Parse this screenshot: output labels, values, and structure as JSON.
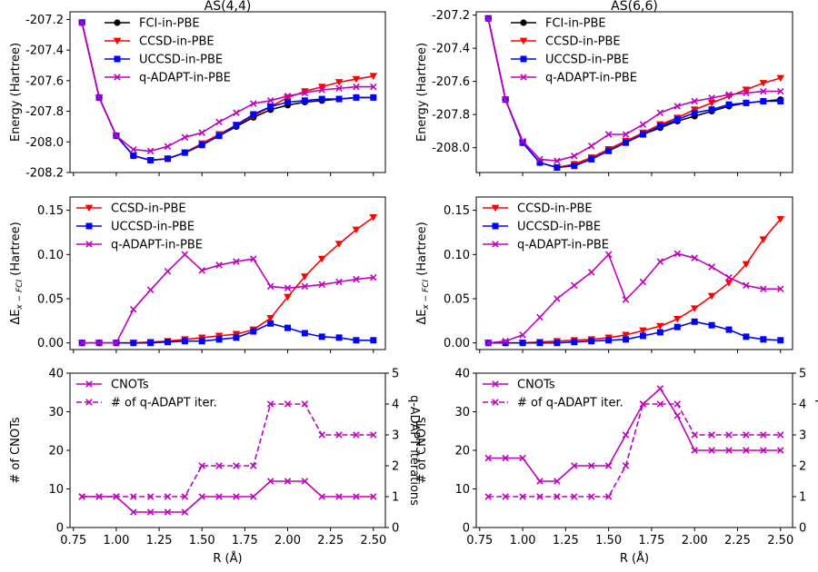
{
  "figure": {
    "shared_xlabel": "R (Å)",
    "x_ticks": [
      0.75,
      1.0,
      1.25,
      1.5,
      1.75,
      2.0,
      2.25,
      2.5
    ],
    "x_tick_labels": [
      "0.75",
      "1.00",
      "1.25",
      "1.50",
      "1.75",
      "2.00",
      "2.25",
      "2.50"
    ],
    "xlim": [
      0.73,
      2.57
    ]
  },
  "colors": {
    "fci": "#000000",
    "ccsd": "#ff0000",
    "uccsd": "#0000ff",
    "qadapt": "#bf00bf"
  },
  "chart_data": [
    {
      "type": "line",
      "column": "left",
      "row": "energy",
      "title": "AS(4,4)",
      "ylabel": "Energy (Hartree)",
      "ylim": [
        -208.2,
        -207.15
      ],
      "y_ticks": [
        -207.2,
        -207.4,
        -207.6,
        -207.8,
        -208.0,
        -208.2
      ],
      "y_tick_labels": [
        "-207.2",
        "-207.4",
        "-207.6",
        "-207.8",
        "-208.0",
        "-208.2"
      ],
      "legend_position": "top-center",
      "x": [
        0.8,
        0.9,
        1.0,
        1.1,
        1.2,
        1.3,
        1.4,
        1.5,
        1.6,
        1.7,
        1.8,
        1.9,
        2.0,
        2.1,
        2.2,
        2.3,
        2.4,
        2.5
      ],
      "series": [
        {
          "name": "FCI-in-PBE",
          "color_key": "fci",
          "marker": "circle",
          "values": [
            -207.22,
            -207.71,
            -207.96,
            -208.09,
            -208.12,
            -208.11,
            -208.07,
            -208.02,
            -207.96,
            -207.9,
            -207.84,
            -207.79,
            -207.76,
            -207.74,
            -207.73,
            -207.72,
            -207.71,
            -207.71
          ]
        },
        {
          "name": "CCSD-in-PBE",
          "color_key": "ccsd",
          "marker": "triangle-down",
          "values": [
            -207.22,
            -207.71,
            -207.96,
            -208.09,
            -208.12,
            -208.11,
            -208.07,
            -208.01,
            -207.95,
            -207.89,
            -207.83,
            -207.77,
            -207.71,
            -207.67,
            -207.64,
            -207.61,
            -207.59,
            -207.57
          ]
        },
        {
          "name": "UCCSD-in-PBE",
          "color_key": "uccsd",
          "marker": "square",
          "values": [
            -207.22,
            -207.71,
            -207.96,
            -208.09,
            -208.12,
            -208.11,
            -208.07,
            -208.02,
            -207.96,
            -207.89,
            -207.82,
            -207.77,
            -207.74,
            -207.73,
            -207.72,
            -207.72,
            -207.71,
            -207.71
          ]
        },
        {
          "name": "q-ADAPT-in-PBE",
          "color_key": "qadapt",
          "marker": "x",
          "values": [
            -207.22,
            -207.71,
            -207.96,
            -208.05,
            -208.06,
            -208.03,
            -207.97,
            -207.94,
            -207.87,
            -207.81,
            -207.75,
            -207.73,
            -207.7,
            -207.68,
            -207.66,
            -207.65,
            -207.64,
            -207.64
          ]
        }
      ]
    },
    {
      "type": "line",
      "column": "right",
      "row": "energy",
      "title": "AS(6,6)",
      "ylabel": "Energy (Hartree)",
      "ylim": [
        -208.15,
        -207.18
      ],
      "y_ticks": [
        -207.2,
        -207.4,
        -207.6,
        -207.8,
        -208.0
      ],
      "y_tick_labels": [
        "-207.2",
        "-207.4",
        "-207.6",
        "-207.8",
        "-208.0"
      ],
      "legend_position": "top-center",
      "x": [
        0.8,
        0.9,
        1.0,
        1.1,
        1.2,
        1.3,
        1.4,
        1.5,
        1.6,
        1.7,
        1.8,
        1.9,
        2.0,
        2.1,
        2.2,
        2.3,
        2.4,
        2.5
      ],
      "series": [
        {
          "name": "FCI-in-PBE",
          "color_key": "fci",
          "marker": "circle",
          "values": [
            -207.22,
            -207.71,
            -207.97,
            -208.09,
            -208.12,
            -208.1,
            -208.06,
            -208.01,
            -207.96,
            -207.92,
            -207.88,
            -207.84,
            -207.81,
            -207.78,
            -207.75,
            -207.73,
            -207.72,
            -207.71
          ]
        },
        {
          "name": "CCSD-in-PBE",
          "color_key": "ccsd",
          "marker": "triangle-down",
          "values": [
            -207.22,
            -207.71,
            -207.97,
            -208.09,
            -208.12,
            -208.1,
            -208.06,
            -208.01,
            -207.96,
            -207.91,
            -207.86,
            -207.82,
            -207.77,
            -207.73,
            -207.69,
            -207.65,
            -207.61,
            -207.58
          ]
        },
        {
          "name": "UCCSD-in-PBE",
          "color_key": "uccsd",
          "marker": "square",
          "values": [
            -207.22,
            -207.71,
            -207.97,
            -208.09,
            -208.12,
            -208.11,
            -208.07,
            -208.02,
            -207.97,
            -207.92,
            -207.87,
            -207.83,
            -207.79,
            -207.77,
            -207.74,
            -207.73,
            -207.72,
            -207.72
          ]
        },
        {
          "name": "q-ADAPT-in-PBE",
          "color_key": "qadapt",
          "marker": "x",
          "values": [
            -207.22,
            -207.71,
            -207.96,
            -208.07,
            -208.08,
            -208.05,
            -207.99,
            -207.92,
            -207.92,
            -207.86,
            -207.79,
            -207.75,
            -207.72,
            -207.7,
            -207.68,
            -207.67,
            -207.66,
            -207.66
          ]
        }
      ]
    },
    {
      "type": "line",
      "column": "left",
      "row": "delta",
      "title": "",
      "ylabel": "ΔE",
      "ylabel_subscript": "x − FCI",
      "ylabel_suffix": " (Hartree)",
      "ylim": [
        -0.0075,
        0.165
      ],
      "y_ticks": [
        0.0,
        0.05,
        0.1,
        0.15
      ],
      "y_tick_labels": [
        "0.00",
        "0.05",
        "0.10",
        "0.15"
      ],
      "legend_position": "top-left",
      "x": [
        0.8,
        0.9,
        1.0,
        1.1,
        1.2,
        1.3,
        1.4,
        1.5,
        1.6,
        1.7,
        1.8,
        1.9,
        2.0,
        2.1,
        2.2,
        2.3,
        2.4,
        2.5
      ],
      "series": [
        {
          "name": "CCSD-in-PBE",
          "color_key": "ccsd",
          "marker": "triangle-down",
          "values": [
            0.0,
            0.0,
            0.0,
            0.0,
            0.001,
            0.002,
            0.004,
            0.006,
            0.008,
            0.01,
            0.015,
            0.028,
            0.052,
            0.075,
            0.095,
            0.112,
            0.128,
            0.142
          ]
        },
        {
          "name": "UCCSD-in-PBE",
          "color_key": "uccsd",
          "marker": "square",
          "values": [
            0.0,
            0.0,
            0.0,
            0.0,
            0.0,
            0.001,
            0.002,
            0.002,
            0.004,
            0.006,
            0.013,
            0.022,
            0.017,
            0.011,
            0.007,
            0.006,
            0.003,
            0.003
          ]
        },
        {
          "name": "q-ADAPT-in-PBE",
          "color_key": "qadapt",
          "marker": "x",
          "values": [
            0.0,
            0.0,
            0.0,
            0.038,
            0.06,
            0.081,
            0.1,
            0.082,
            0.088,
            0.092,
            0.095,
            0.064,
            0.062,
            0.064,
            0.066,
            0.069,
            0.072,
            0.074
          ]
        }
      ]
    },
    {
      "type": "line",
      "column": "right",
      "row": "delta",
      "title": "",
      "ylabel": "ΔE",
      "ylabel_subscript": "x − FCI",
      "ylabel_suffix": " (Hartree)",
      "ylim": [
        -0.0075,
        0.165
      ],
      "y_ticks": [
        0.0,
        0.05,
        0.1,
        0.15
      ],
      "y_tick_labels": [
        "0.00",
        "0.05",
        "0.10",
        "0.15"
      ],
      "legend_position": "top-left",
      "x": [
        0.8,
        0.9,
        1.0,
        1.1,
        1.2,
        1.3,
        1.4,
        1.5,
        1.6,
        1.7,
        1.8,
        1.9,
        2.0,
        2.1,
        2.2,
        2.3,
        2.4,
        2.5
      ],
      "series": [
        {
          "name": "CCSD-in-PBE",
          "color_key": "ccsd",
          "marker": "triangle-down",
          "values": [
            0.0,
            0.0,
            0.0,
            0.001,
            0.002,
            0.003,
            0.004,
            0.006,
            0.009,
            0.014,
            0.019,
            0.027,
            0.039,
            0.053,
            0.068,
            0.089,
            0.117,
            0.14
          ]
        },
        {
          "name": "UCCSD-in-PBE",
          "color_key": "uccsd",
          "marker": "square",
          "values": [
            0.0,
            0.0,
            0.0,
            0.0,
            0.0,
            0.001,
            0.002,
            0.003,
            0.004,
            0.008,
            0.012,
            0.018,
            0.024,
            0.02,
            0.015,
            0.007,
            0.004,
            0.003
          ]
        },
        {
          "name": "q-ADAPT-in-PBE",
          "color_key": "qadapt",
          "marker": "x",
          "values": [
            0.0,
            0.002,
            0.009,
            0.029,
            0.05,
            0.065,
            0.08,
            0.1,
            0.049,
            0.069,
            0.092,
            0.101,
            0.096,
            0.086,
            0.074,
            0.065,
            0.061,
            0.061
          ]
        }
      ]
    },
    {
      "type": "line",
      "column": "left",
      "row": "cnots",
      "title": "",
      "ylabel": "# of CNOTs",
      "ylim": [
        0,
        40
      ],
      "y_ticks": [
        0,
        10,
        20,
        30,
        40
      ],
      "y_tick_labels": [
        "0",
        "10",
        "20",
        "30",
        "40"
      ],
      "ylabel_right": "q-ADAPT iterations",
      "ylim_right": [
        0,
        5
      ],
      "y_ticks_right": [
        0,
        1,
        2,
        3,
        4,
        5
      ],
      "y_tick_labels_right": [
        "0",
        "1",
        "2",
        "3",
        "4",
        "5"
      ],
      "legend_position": "top-left",
      "x": [
        0.8,
        0.9,
        1.0,
        1.1,
        1.2,
        1.3,
        1.4,
        1.5,
        1.6,
        1.7,
        1.8,
        1.9,
        2.0,
        2.1,
        2.2,
        2.3,
        2.4,
        2.5
      ],
      "series": [
        {
          "name": "CNOTs",
          "axis": "left",
          "style": "solid",
          "color_key": "qadapt",
          "marker": "x",
          "values": [
            8,
            8,
            8,
            4,
            4,
            4,
            4,
            8,
            8,
            8,
            8,
            12,
            12,
            12,
            8,
            8,
            8,
            8
          ]
        },
        {
          "name": "# of q-ADAPT iter.",
          "axis": "right",
          "style": "dashed",
          "color_key": "qadapt",
          "marker": "x",
          "values": [
            1,
            1,
            1,
            1,
            1,
            1,
            1,
            2,
            2,
            2,
            2,
            4,
            4,
            4,
            3,
            3,
            3,
            3
          ]
        }
      ]
    },
    {
      "type": "line",
      "column": "right",
      "row": "cnots",
      "title": "",
      "ylabel": "# of CNOTs",
      "ylim": [
        0,
        40
      ],
      "y_ticks": [
        0,
        10,
        20,
        30,
        40
      ],
      "y_tick_labels": [
        "0",
        "10",
        "20",
        "30",
        "40"
      ],
      "ylabel_right": "q-ADAPT iterations",
      "ylim_right": [
        0,
        5
      ],
      "y_ticks_right": [
        0,
        1,
        2,
        3,
        4,
        5
      ],
      "y_tick_labels_right": [
        "0",
        "1",
        "2",
        "3",
        "4",
        "5"
      ],
      "legend_position": "top-left",
      "x": [
        0.8,
        0.9,
        1.0,
        1.1,
        1.2,
        1.3,
        1.4,
        1.5,
        1.6,
        1.7,
        1.8,
        1.9,
        2.0,
        2.1,
        2.2,
        2.3,
        2.4,
        2.5
      ],
      "series": [
        {
          "name": "CNOTs",
          "axis": "left",
          "style": "solid",
          "color_key": "qadapt",
          "marker": "x",
          "values": [
            18,
            18,
            18,
            12,
            12,
            16,
            16,
            16,
            24,
            32,
            36,
            29,
            20,
            20,
            20,
            20,
            20,
            20
          ]
        },
        {
          "name": "# of q-ADAPT iter.",
          "axis": "right",
          "style": "dashed",
          "color_key": "qadapt",
          "marker": "x",
          "values": [
            1,
            1,
            1,
            1,
            1,
            1,
            1,
            1,
            2,
            4,
            4,
            4,
            3,
            3,
            3,
            3,
            3,
            3
          ]
        }
      ]
    }
  ]
}
